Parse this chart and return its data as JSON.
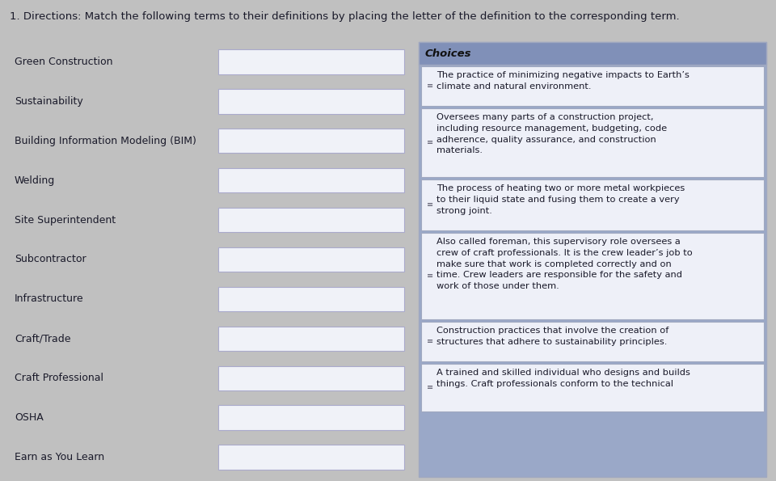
{
  "title": "1. Directions: Match the following terms to their definitions by placing the letter of the definition to the corresponding term.",
  "title_fontsize": 9.5,
  "background_color": "#c8c8c8",
  "terms": [
    "Green Construction",
    "Sustainability",
    "Building Information Modeling (BIM)",
    "Welding",
    "Site Superintendent",
    "Subcontractor",
    "Infrastructure",
    "Craft/Trade",
    "Craft Professional",
    "OSHA",
    "Earn as You Learn"
  ],
  "choices_header": "Choices",
  "choices_header_bg": "#8090b8",
  "choices_panel_bg": "#9aa8c8",
  "choices": [
    "The practice of minimizing negative impacts to Earth’s\nclimate and natural environment.",
    "Oversees many parts of a construction project,\nincluding resource management, budgeting, code\nadherence, quality assurance, and construction\nmaterials.",
    "The process of heating two or more metal workpieces\nto their liquid state and fusing them to create a very\nstrong joint.",
    "Also called foreman, this supervisory role oversees a\ncrew of craft professionals. It is the crew leader’s job to\nmake sure that work is completed correctly and on\ntime. Crew leaders are responsible for the safety and\nwork of those under them.",
    "Construction practices that involve the creation of\nstructures that adhere to sustainability principles.",
    "A trained and skilled individual who designs and builds\nthings. Craft professionals conform to the technical"
  ],
  "choice_bg": "#dce2f0",
  "choice_white_bg": "#eef0f8",
  "choice_border_color": "#a0a8c0",
  "term_box_color": "#f0f2f8",
  "term_box_border": "#aaaacc",
  "text_color": "#1a1a2a",
  "page_bg": "#c0c0c0"
}
